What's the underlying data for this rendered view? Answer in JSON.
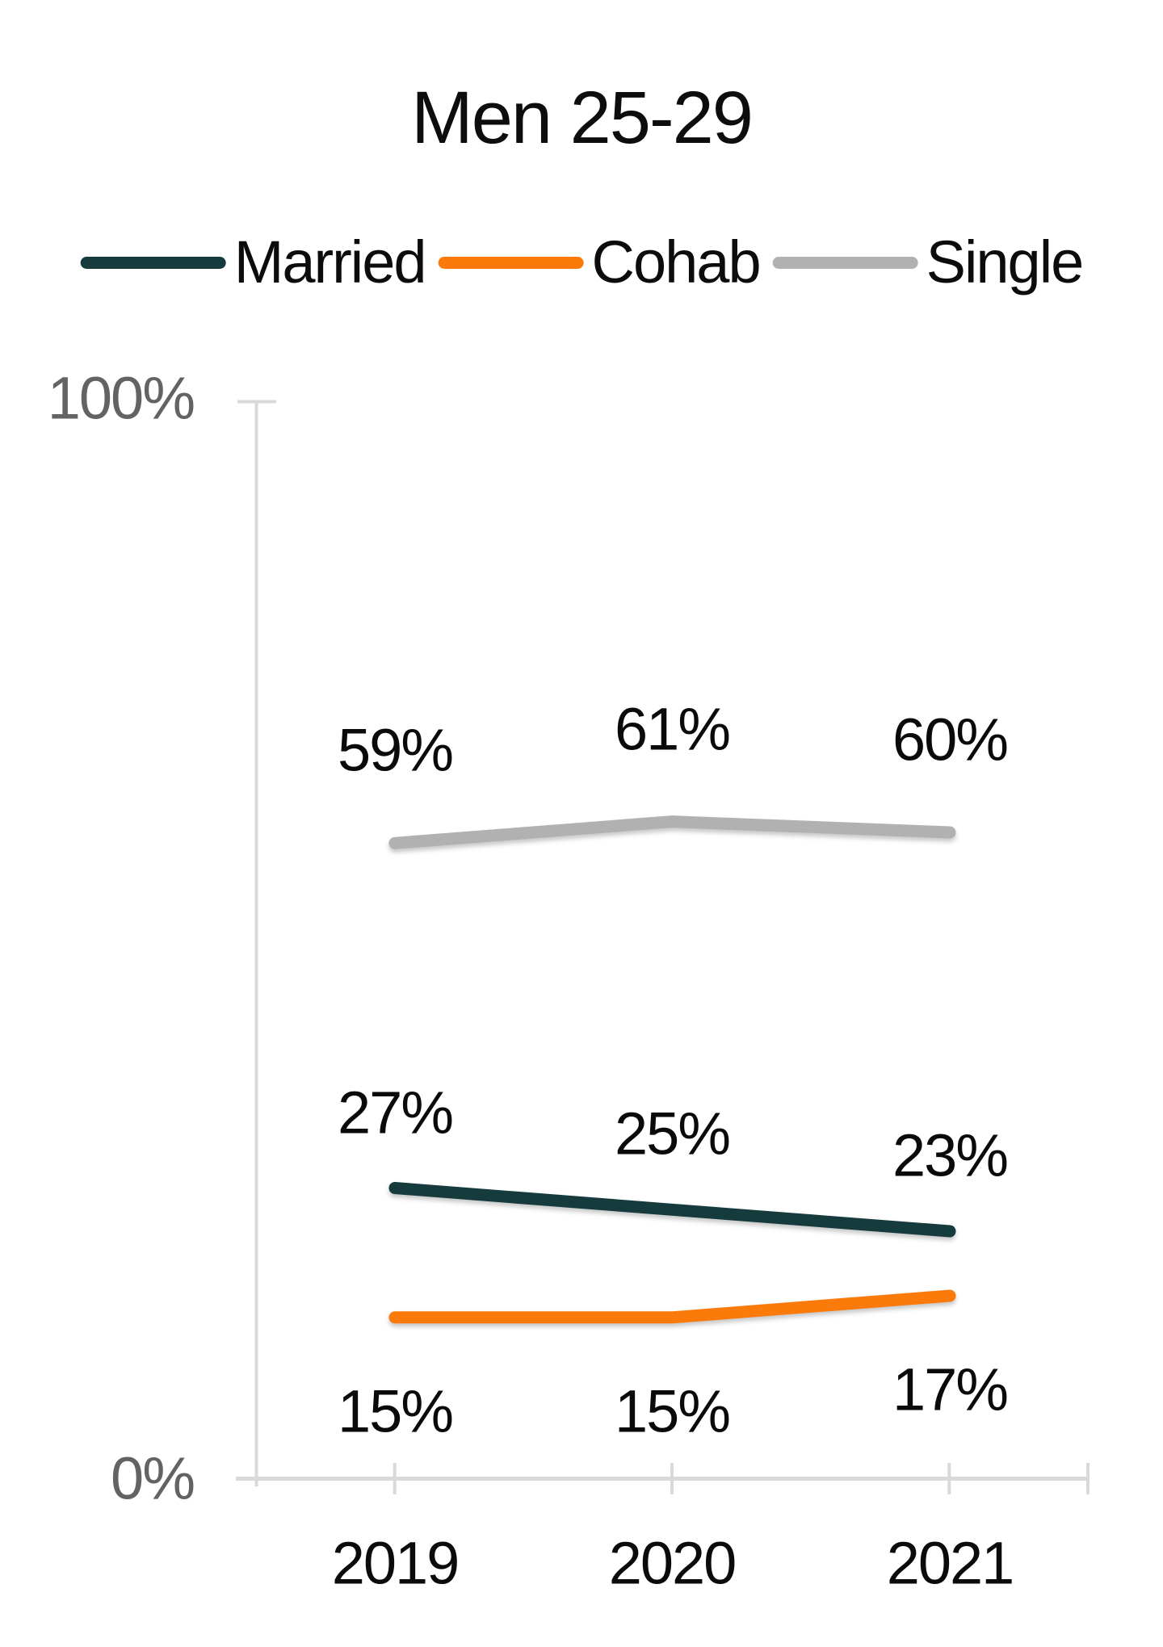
{
  "title": "Men 25-29",
  "legend": {
    "items": [
      {
        "label": "Married",
        "color": "#153B3D"
      },
      {
        "label": "Cohab",
        "color": "#FB7A0A"
      },
      {
        "label": "Single",
        "color": "#B1B1B1"
      }
    ]
  },
  "y_axis": {
    "top_label": "100%",
    "bottom_label": "0%"
  },
  "x_axis": {
    "labels": [
      "2019",
      "2020",
      "2021"
    ]
  },
  "chart_data": {
    "type": "line",
    "title": "Men 25-29",
    "categories": [
      "2019",
      "2020",
      "2021"
    ],
    "series": [
      {
        "name": "Married",
        "color": "#153B3D",
        "values": [
          27,
          25,
          23
        ],
        "label_side": "above"
      },
      {
        "name": "Cohab",
        "color": "#FB7A0A",
        "values": [
          15,
          15,
          17
        ],
        "label_side": "below"
      },
      {
        "name": "Single",
        "color": "#B1B1B1",
        "values": [
          59,
          61,
          60
        ],
        "label_side": "above"
      }
    ],
    "ylim": [
      0,
      100
    ],
    "y_tick_labels": [
      "0%",
      "100%"
    ],
    "data_label_format": "{v}%",
    "legend_position": "top",
    "grid": false,
    "axis_color": "#D9D9D9"
  }
}
